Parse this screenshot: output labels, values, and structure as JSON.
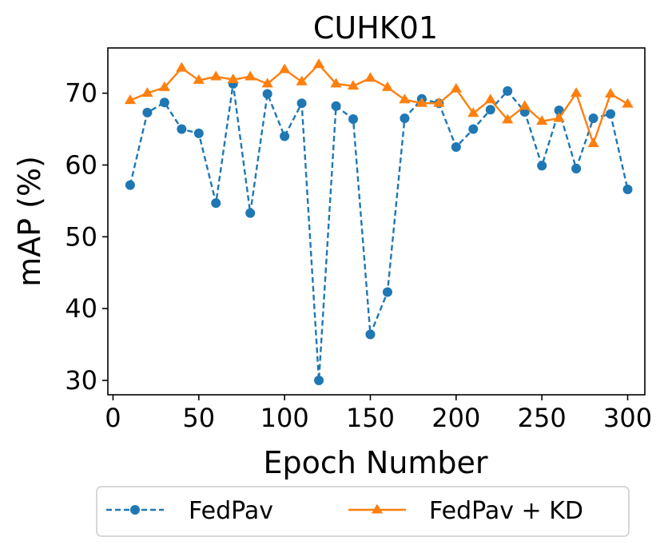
{
  "chart_data": {
    "type": "line",
    "title": "CUHK01",
    "xlabel": "Epoch Number",
    "ylabel": "mAP (%)",
    "xlim": [
      -3,
      310
    ],
    "ylim": [
      28,
      76.3
    ],
    "xticks": [
      0,
      50,
      100,
      150,
      200,
      250,
      300
    ],
    "yticks": [
      30,
      40,
      50,
      60,
      70
    ],
    "grid": false,
    "legend_position": "bottom-center-outside",
    "x": [
      10,
      20,
      30,
      40,
      50,
      60,
      70,
      80,
      90,
      100,
      110,
      120,
      130,
      140,
      150,
      160,
      170,
      180,
      190,
      200,
      210,
      220,
      230,
      240,
      250,
      260,
      270,
      280,
      290,
      300
    ],
    "series": [
      {
        "name": "FedPav",
        "color": "#1f77b4",
        "line_style": "dashed",
        "marker": "circle",
        "values": [
          57.2,
          67.3,
          68.7,
          65.0,
          64.4,
          54.7,
          71.3,
          53.3,
          69.9,
          64.0,
          68.6,
          30.0,
          68.2,
          66.4,
          36.4,
          42.3,
          66.5,
          69.2,
          68.6,
          62.5,
          65.0,
          67.7,
          70.3,
          67.4,
          59.9,
          67.6,
          59.5,
          66.5,
          67.1,
          56.6
        ]
      },
      {
        "name": "FedPav + KD",
        "color": "#ff7f0e",
        "line_style": "solid",
        "marker": "triangle",
        "values": [
          69.0,
          70.0,
          70.8,
          73.5,
          71.8,
          72.3,
          71.9,
          72.3,
          71.3,
          73.3,
          71.6,
          74.0,
          71.3,
          71.0,
          72.1,
          70.8,
          69.1,
          68.6,
          68.6,
          70.6,
          67.2,
          69.1,
          66.3,
          68.2,
          66.1,
          66.5,
          70.0,
          63.0,
          69.9,
          68.5
        ]
      }
    ]
  }
}
